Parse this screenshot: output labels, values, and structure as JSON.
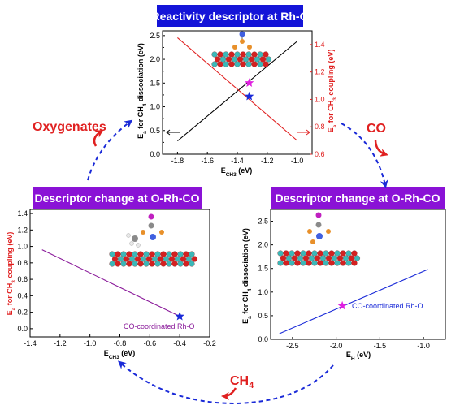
{
  "titles": {
    "top": "Reactivity descriptor at Rh-O",
    "left": "Descriptor change at O-Rh-CO",
    "right": "Descriptor change at O-Rh-CO"
  },
  "cycle_labels": {
    "oxygenates": "Oxygenates",
    "co": "CO",
    "ch4_main": "CH",
    "ch4_sub": "4"
  },
  "colors": {
    "title_top": "#1414d8",
    "title_purple": "#8a12d6",
    "cycle_arrow": "#1a2ad8",
    "red_label": "#e02020",
    "black_line": "#000000",
    "red_line": "#e02020",
    "purple_line": "#8a1a9a",
    "blue_line": "#1a2ad8",
    "star_blue": "#1a2ad8",
    "star_magenta": "#e020e0",
    "atom_red": "#d42020",
    "atom_cyan": "#3ab8b8",
    "atom_orange": "#e8902a",
    "atom_blue": "#4060e0",
    "atom_gray": "#8a8a8a",
    "atom_white": "#e8e8e8",
    "atom_magenta": "#c020c0"
  },
  "chart_data": [
    {
      "type": "line",
      "panel": "top",
      "x": [
        -1.8,
        -1.0
      ],
      "xlim": [
        -1.9,
        -0.9
      ],
      "xticks": [
        "-1.8",
        "-1.6",
        "-1.4",
        "-1.2",
        "-1.0"
      ],
      "xlabel": "E",
      "xlabel_sub": "CH3",
      "xlabel_unit": " (eV)",
      "ylabel_left": "E",
      "ylabel_left_sub": "a",
      "ylabel_left_rest": " for CH",
      "ylabel_left_sub2": "4",
      "ylabel_left_tail": " dissociation (eV)",
      "ylabel_right": "E",
      "ylabel_right_sub": "a",
      "ylabel_right_rest": " for CH",
      "ylabel_right_sub2": "3",
      "ylabel_right_tail": " coupling (eV)",
      "ylim_left": [
        0.0,
        2.6
      ],
      "ylim_right": [
        0.6,
        1.5
      ],
      "yticks_left": [
        "0.0",
        "0.5",
        "1.0",
        "1.5",
        "2.0",
        "2.5"
      ],
      "yticks_left_minor": [
        "0.0",
        "0.25",
        "0.5",
        "0.75",
        "1.0",
        "1.25",
        "1.5",
        "1.75",
        "2.0",
        "2.25",
        "2.5"
      ],
      "yticks_left_labels": [
        "0.0",
        "0.25",
        "0.50",
        "0.75",
        "1.00",
        "1.25",
        "1.50",
        "1.75",
        "2.00",
        "2.25",
        "2.50"
      ],
      "yticks_left_print": [
        "0.0",
        "",
        "0.5",
        "",
        "1.0",
        "",
        "1.5",
        "",
        "2.0",
        "",
        "2.5"
      ],
      "yticks_right_print": [
        "0.6",
        "0.8",
        "1.0",
        "1.2",
        "1.4"
      ],
      "series": [
        {
          "axis": "left",
          "x": [
            -1.8,
            -1.0
          ],
          "y": [
            0.28,
            2.38
          ]
        },
        {
          "axis": "right",
          "x": [
            -1.8,
            -1.0
          ],
          "y": [
            1.45,
            0.7
          ]
        }
      ],
      "stars": [
        {
          "x": -1.32,
          "y": 1.22,
          "axis": "left",
          "color": "blue"
        },
        {
          "x": -1.32,
          "y": 1.12,
          "axis": "right",
          "color": "magenta"
        }
      ]
    },
    {
      "type": "line",
      "panel": "left",
      "xlim": [
        -1.4,
        -0.2
      ],
      "xticks": [
        "-1.4",
        "-1.2",
        "-1.0",
        "-0.8",
        "-0.6",
        "-0.4",
        "-0.2"
      ],
      "xlabel": "E",
      "xlabel_sub": "CH3",
      "xlabel_unit": " (eV)",
      "ylabel": "E",
      "ylabel_sub": "a",
      "ylabel_rest": " for CH",
      "ylabel_sub2": "3",
      "ylabel_tail": " coupling (eV)",
      "ylim": [
        -0.1,
        1.45
      ],
      "yticks": [
        "0.0",
        "0.2",
        "0.4",
        "0.6",
        "0.8",
        "1.0",
        "1.2",
        "1.4"
      ],
      "series": [
        {
          "x": [
            -1.32,
            -0.4
          ],
          "y": [
            0.96,
            0.15
          ]
        }
      ],
      "stars": [
        {
          "x": -0.4,
          "y": 0.15,
          "color": "blue"
        }
      ],
      "annotation": "CO-coordinated Rh-O"
    },
    {
      "type": "line",
      "panel": "right",
      "xlim": [
        -2.75,
        -0.75
      ],
      "xticks": [
        "-2.5",
        "-2.0",
        "-1.5",
        "-1.0"
      ],
      "xlabel": "E",
      "xlabel_sub": "H",
      "xlabel_unit": " (eV)",
      "ylabel": "E",
      "ylabel_sub": "a",
      "ylabel_rest": " for CH",
      "ylabel_sub2": "4",
      "ylabel_tail": " dissociation (eV)",
      "ylim": [
        0.0,
        2.75
      ],
      "yticks": [
        "0.0",
        "0.5",
        "1.0",
        "1.5",
        "2.0",
        "2.5"
      ],
      "series": [
        {
          "x": [
            -2.65,
            -0.95
          ],
          "y": [
            0.12,
            1.48
          ]
        }
      ],
      "stars": [
        {
          "x": -1.93,
          "y": 0.71,
          "color": "magenta"
        }
      ],
      "annotation": "CO-coordinated Rh-O"
    }
  ]
}
